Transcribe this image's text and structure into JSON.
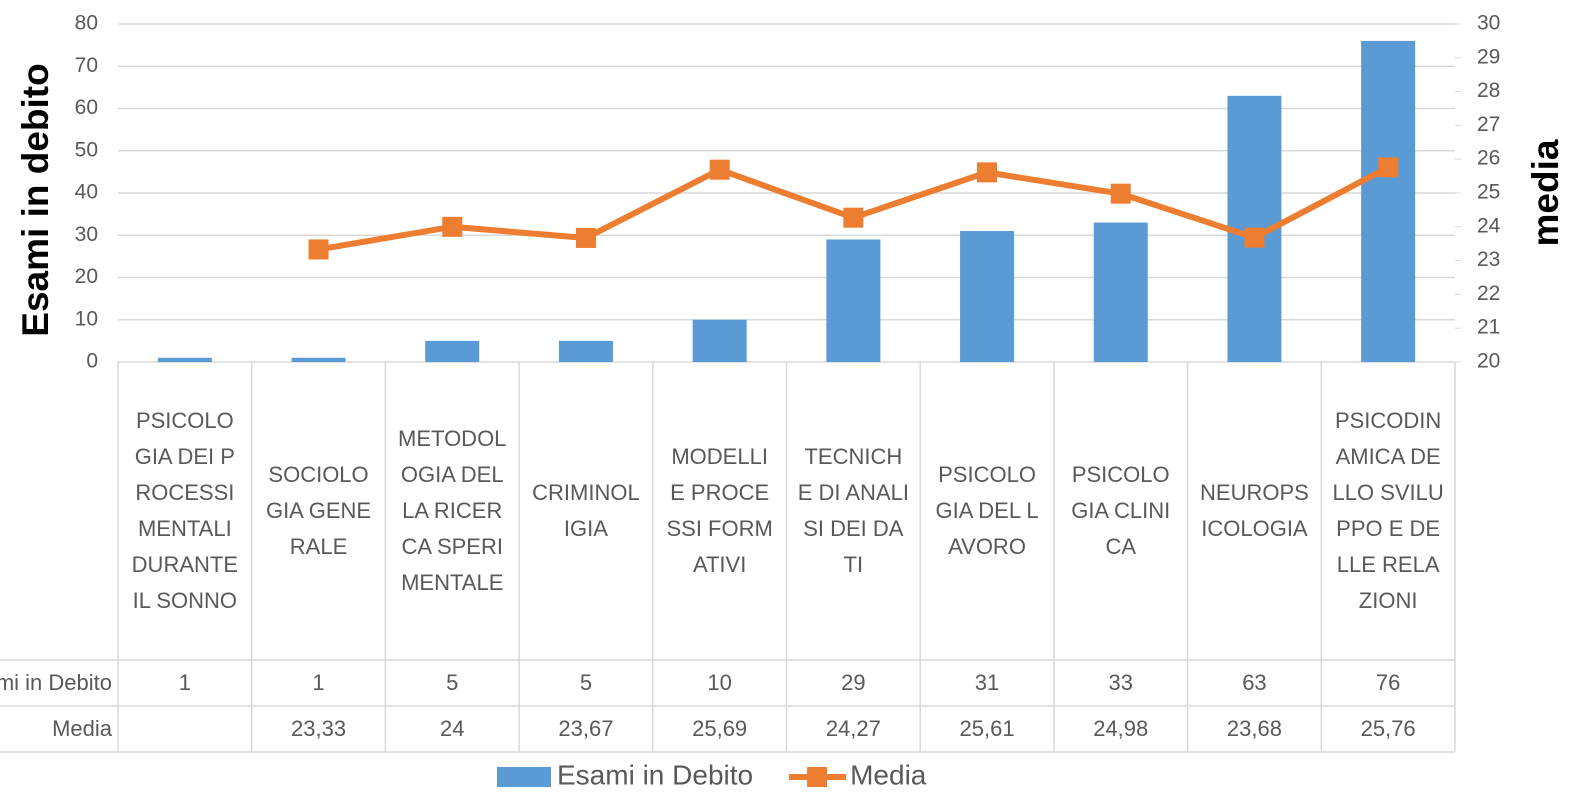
{
  "chart_data": {
    "type": "bar",
    "categories": [
      "PSICOLOGIA DEI PROCESSI MENTALI DURANTE IL SONNO",
      "SOCIOLOGIA GENERALE",
      "METODOLOGIA DELLA RICERCA SPERIMENTALE",
      "CRIMINOLIGIA",
      "MODELLI E PROCESSI FORMATIVI",
      "TECNICHE DI ANALISI DEI DATI",
      "PSICOLOGIA DEL LAVORO",
      "PSICOLOGIA CLINICA",
      "NEUROPSICOLOGIA",
      "PSICODINAMICA DELLO SVILUPPO E DELLE RELAZIONI"
    ],
    "series": [
      {
        "name": "Esami in Debito",
        "type": "bar",
        "color": "#5b9bd5",
        "values": [
          1,
          1,
          5,
          5,
          10,
          29,
          31,
          33,
          63,
          76
        ]
      },
      {
        "name": "Media",
        "type": "line",
        "axis": "y2",
        "color": "#ed7d31",
        "values": [
          null,
          23.33,
          24,
          23.67,
          25.69,
          24.27,
          25.61,
          24.98,
          23.68,
          25.76
        ],
        "value_labels": [
          null,
          "23,33",
          "24",
          "23,67",
          "25,69",
          "24,27",
          "25,61",
          "24,98",
          "23,68",
          "25,76"
        ]
      }
    ],
    "ylabel": "Esami in debito",
    "y2label": "media",
    "ylim": [
      0,
      80
    ],
    "yticks": [
      0,
      10,
      20,
      30,
      40,
      50,
      60,
      70,
      80
    ],
    "y2lim": [
      20,
      30
    ],
    "y2ticks": [
      20,
      21,
      22,
      23,
      24,
      25,
      26,
      27,
      28,
      29,
      30
    ],
    "grid": true,
    "legend": "bottom",
    "data_table": true
  }
}
